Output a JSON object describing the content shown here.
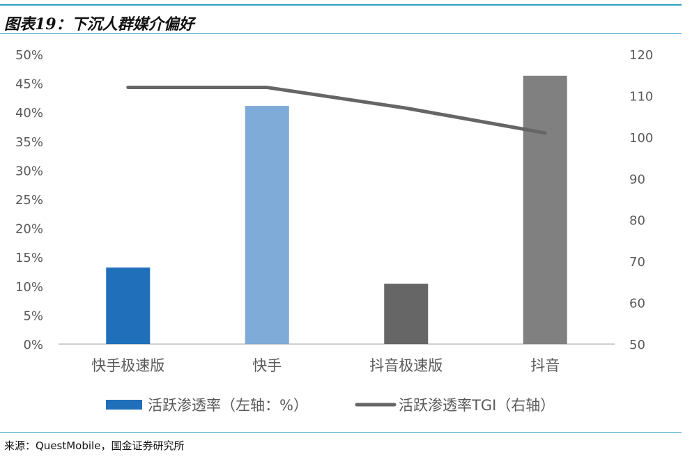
{
  "header": {
    "title": "图表19：下沉人群媒介偏好"
  },
  "footer": {
    "source": "来源：QuestMobile，国金证券研究所"
  },
  "colors": {
    "accent_rule": "#2a9dc0",
    "axis": "#bfbfbf",
    "tick_text": "#595959"
  },
  "chart_data": {
    "type": "bar",
    "categories": [
      "快手极速版",
      "快手",
      "抖音极速版",
      "抖音"
    ],
    "y_ticks_left": [
      "0%",
      "5%",
      "10%",
      "15%",
      "20%",
      "25%",
      "30%",
      "35%",
      "40%",
      "45%",
      "50%"
    ],
    "y_ticks_right": [
      "50",
      "60",
      "70",
      "80",
      "90",
      "100",
      "110",
      "120"
    ],
    "ylim": [
      0,
      50
    ],
    "y2lim": [
      50,
      120
    ],
    "grid": false,
    "legend_position": "bottom",
    "series": [
      {
        "name": "活跃渗透率（左轴：%）",
        "type": "bar",
        "axis": "left",
        "values": [
          13.2,
          41.1,
          10.4,
          46.3
        ],
        "colors": [
          "#1f6fba",
          "#7eabd7",
          "#666666",
          "#808080"
        ]
      },
      {
        "name": "活跃渗透率TGI（右轴）",
        "type": "line",
        "axis": "right",
        "values": [
          112,
          112,
          107,
          101
        ],
        "color": "#666666"
      }
    ]
  }
}
